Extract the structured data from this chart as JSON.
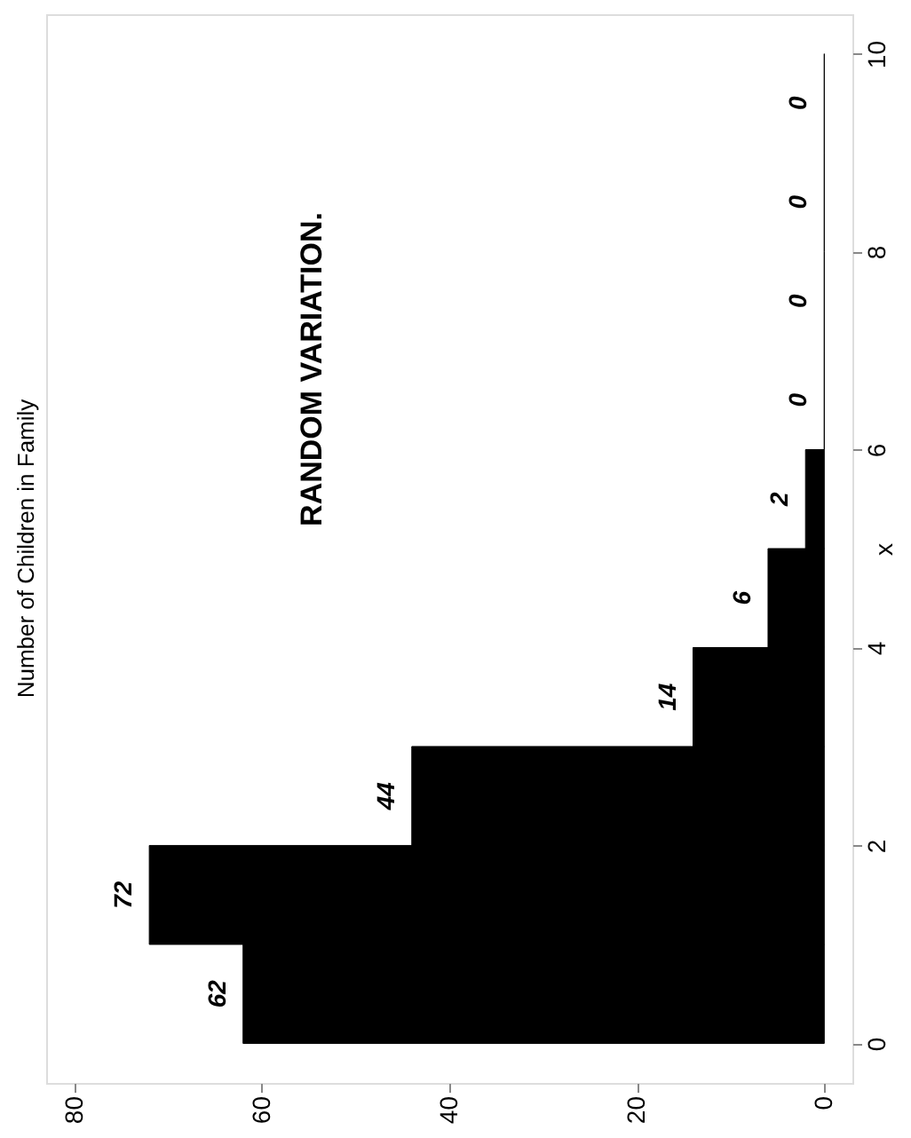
{
  "chart_data": {
    "type": "histogram",
    "title": "Number of Children in Family",
    "ylabel": "x",
    "bins": [
      0,
      1,
      2,
      3,
      4,
      5,
      6,
      7,
      8,
      9,
      10
    ],
    "values": [
      62,
      72,
      44,
      14,
      6,
      2,
      0,
      0,
      0,
      0
    ],
    "orientation": "horizontal",
    "color": "#000000",
    "xlim": [
      83,
      -3
    ],
    "xticks": [
      0,
      20,
      40,
      60,
      80
    ],
    "ylim": [
      -0.4,
      10.4
    ],
    "yticks": [
      0,
      2,
      4,
      6,
      8,
      10
    ],
    "data_labels": true,
    "grid": false,
    "annotations": [
      "RANDOM VARIATION."
    ]
  }
}
